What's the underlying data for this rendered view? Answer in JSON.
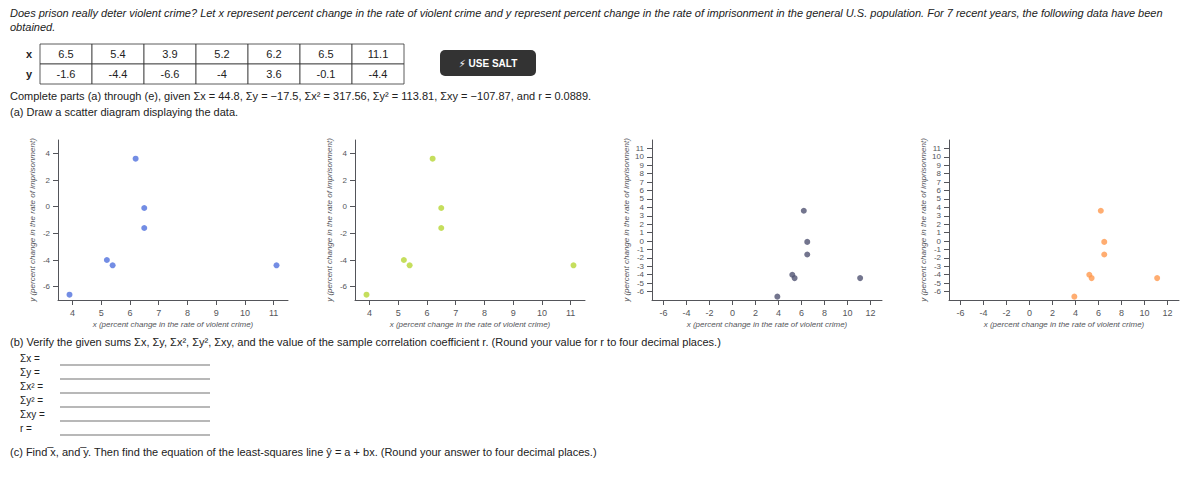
{
  "chart_data": [
    {
      "type": "scatter",
      "xlabel": "x (percent change in the rate of violent crime)",
      "ylabel": "y (percent change in the rate of imprisonment)",
      "x": [
        6.5,
        5.4,
        3.9,
        5.2,
        6.2,
        6.5,
        11.1
      ],
      "values": [
        -1.6,
        -4.4,
        -6.6,
        -4.0,
        3.6,
        -0.1,
        -4.4
      ],
      "xlim": [
        3.5,
        11.5
      ],
      "ylim": [
        -7,
        5
      ],
      "xticks": [
        4,
        5,
        6,
        7,
        8,
        9,
        10,
        11
      ],
      "yticks": [
        -6,
        -4,
        -2,
        0,
        2,
        4
      ],
      "grid": false,
      "annotations": [
        "Does prison really deter violent crime? Let x represent percent change in the rate of violent crime and y represent percent change in the rate of imprisonment in the general U.S. population. For 7 recent years, the following data have been obtained.",
        "Complete parts (a) through (e), given Σx = 44.8, Σy = −17.5, Σx² = 317.56, Σy² = 113.81, Σxy = −107.87, and r = 0.0889.",
        "(a) Draw a scatter diagram displaying the data.",
        "⚡ USE SALT",
        "(b) Verify the given sums Σx, Σy, Σx², Σy², Σxy, and the value of the sample correlation coefficient r. (Round your value for r to four decimal places.)",
        "Σx =",
        "Σy =",
        "Σx² =",
        "Σy² =",
        "Σxy =",
        "r =",
        "(c) Find ̅x, and ̅y. Then find the equation of the least-squares line ŷ = a + bx. (Round your answer to four decimal places.)"
      ],
      "table": {
        "row_labels": [
          "x",
          "y"
        ],
        "rows": [
          [
            6.5,
            5.4,
            3.9,
            5.2,
            6.2,
            6.5,
            11.1
          ],
          [
            -1.6,
            -4.4,
            -6.6,
            -4.0,
            3.6,
            -0.1,
            -4.4
          ]
        ]
      }
    },
    {
      "type": "scatter",
      "xlabel": "x (percent change in the rate of violent crime)",
      "ylabel": "y (percent change in the rate of imprisonment)",
      "x": [
        6.5,
        5.4,
        3.9,
        5.2,
        6.2,
        6.5,
        11.1
      ],
      "values": [
        -1.6,
        -4.4,
        -6.6,
        -4.0,
        3.6,
        -0.1,
        -4.4
      ],
      "xlim": [
        3.5,
        11.5
      ],
      "ylim": [
        -7,
        5
      ],
      "xticks": [
        4,
        5,
        6,
        7,
        8,
        9,
        10,
        11
      ],
      "yticks": [
        -6,
        -4,
        -2,
        0,
        2,
        4
      ],
      "grid": false
    },
    {
      "type": "scatter",
      "xlabel": "x (percent change in the rate of violent crime)",
      "ylabel": "y (percent change in the rate of imprisonment)",
      "x": [
        6.5,
        5.4,
        3.9,
        5.2,
        6.2,
        6.5,
        11.1
      ],
      "values": [
        -1.6,
        -4.4,
        -6.6,
        -4.0,
        3.6,
        -0.1,
        -4.4
      ],
      "xlim": [
        -7,
        13
      ],
      "ylim": [
        -7,
        12
      ],
      "xticks": [
        -6,
        -4,
        -2,
        0,
        2,
        4,
        6,
        8,
        10,
        12
      ],
      "yticks": [
        -6,
        -5,
        -4,
        -3,
        -2,
        -1,
        0,
        1,
        2,
        3,
        4,
        5,
        6,
        7,
        8,
        9,
        10,
        11
      ],
      "grid": false
    },
    {
      "type": "scatter",
      "xlabel": "x (percent change in the rate of violent crime)",
      "ylabel": "y (percent change in the rate of imprisonment)",
      "x": [
        6.5,
        5.4,
        3.9,
        5.2,
        6.2,
        6.5,
        11.1
      ],
      "values": [
        -1.6,
        -4.4,
        -6.6,
        -4.0,
        3.6,
        -0.1,
        -4.4
      ],
      "xlim": [
        -7,
        13
      ],
      "ylim": [
        -7,
        12
      ],
      "xticks": [
        -6,
        -4,
        -2,
        0,
        2,
        4,
        6,
        8,
        10,
        12
      ],
      "yticks": [
        -6,
        -5,
        -4,
        -3,
        -2,
        -1,
        0,
        1,
        2,
        3,
        4,
        5,
        6,
        7,
        8,
        9,
        10,
        11
      ],
      "grid": false
    }
  ]
}
